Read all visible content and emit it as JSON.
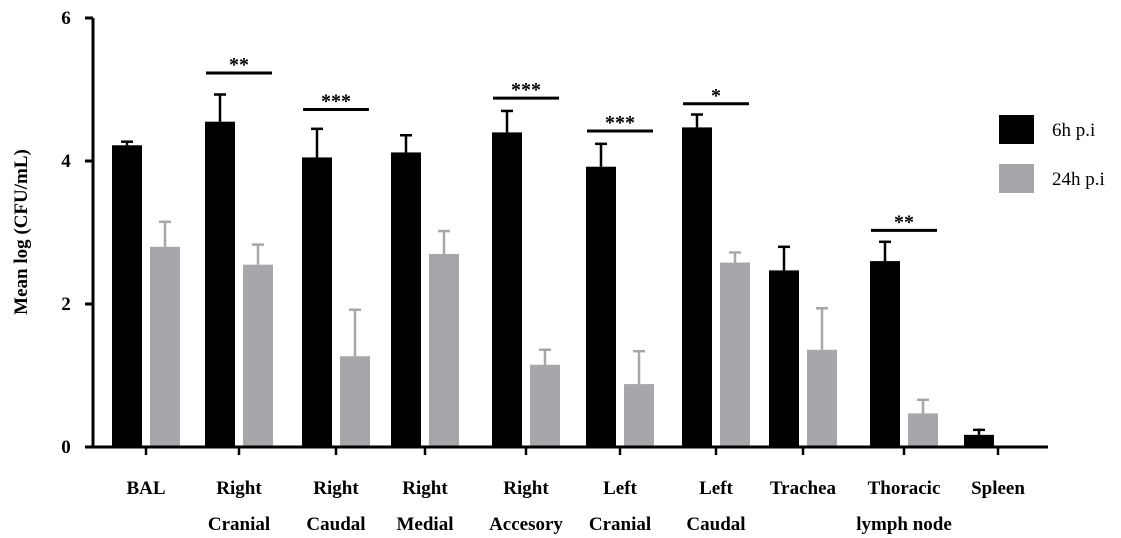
{
  "chart_data": {
    "type": "bar",
    "title": "",
    "xlabel": "",
    "ylabel": "Mean log (CFU/mL)",
    "ylim": [
      0,
      6
    ],
    "yticks": [
      "0",
      "2",
      "4",
      "6"
    ],
    "grid": false,
    "legend_position": "right",
    "categories": [
      [
        "BAL"
      ],
      [
        "Right",
        "Cranial"
      ],
      [
        "Right",
        "Caudal"
      ],
      [
        "Right",
        "Medial"
      ],
      [
        "Right",
        "Accesory"
      ],
      [
        "Left",
        "Cranial"
      ],
      [
        "Left",
        "Caudal"
      ],
      [
        "Trachea"
      ],
      [
        "Thoracic",
        "lymph node"
      ],
      [
        "Spleen"
      ]
    ],
    "series": [
      {
        "name": "6h p.i",
        "color": "#000000",
        "values": [
          4.22,
          4.55,
          4.05,
          4.12,
          4.4,
          3.92,
          4.47,
          2.47,
          2.6,
          0.17
        ],
        "errors": [
          0.05,
          0.38,
          0.4,
          0.24,
          0.3,
          0.32,
          0.18,
          0.33,
          0.27,
          0.07
        ]
      },
      {
        "name": "24h p.i",
        "color": "#a7a7ab",
        "values": [
          2.8,
          2.55,
          1.27,
          2.7,
          1.15,
          0.88,
          2.58,
          1.36,
          0.47,
          0
        ],
        "errors": [
          0.35,
          0.28,
          0.65,
          0.32,
          0.21,
          0.46,
          0.14,
          0.58,
          0.19,
          0
        ]
      }
    ],
    "significance": [
      {
        "category": 1,
        "label": "**",
        "y": 5.23
      },
      {
        "category": 2,
        "label": "***",
        "y": 4.72
      },
      {
        "category": 4,
        "label": "***",
        "y": 4.88
      },
      {
        "category": 5,
        "label": "***",
        "y": 4.42
      },
      {
        "category": 6,
        "label": "*",
        "y": 4.8
      },
      {
        "category": 8,
        "label": "**",
        "y": 3.03
      }
    ]
  }
}
